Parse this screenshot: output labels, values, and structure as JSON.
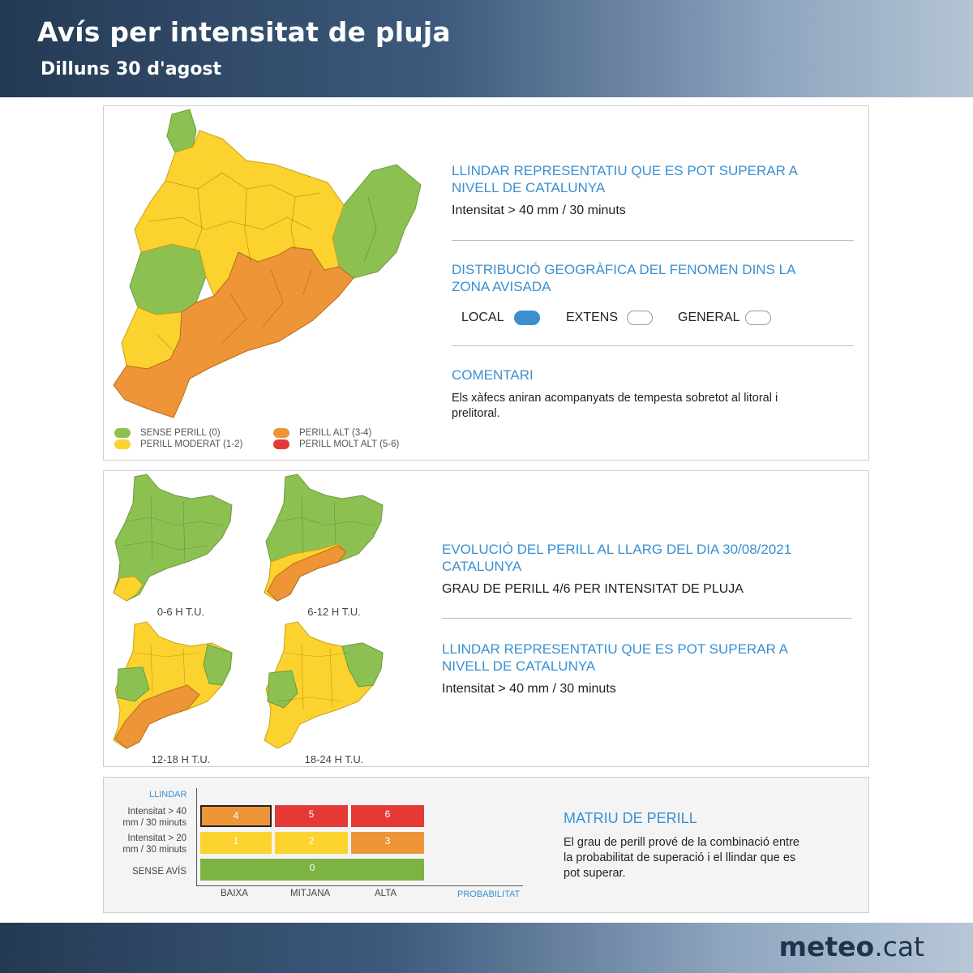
{
  "header": {
    "title": "Avís per intensitat de pluja",
    "subtitle": "Dilluns 30 d'agost"
  },
  "colors": {
    "green": "#8cc152",
    "yellow": "#fcd22e",
    "orange": "#ee9637",
    "red": "#e53935",
    "blue": "#3a8fd0",
    "band_start": "#243a53",
    "band_end": "#b4c4d5"
  },
  "panel1": {
    "threshold_title_1": "LLINDAR REPRESENTATIU QUE ES POT SUPERAR A",
    "threshold_title_2": "NIVELL DE CATALUNYA",
    "threshold_text": "Intensitat > 40 mm / 30 minuts",
    "distribution_title_1": "DISTRIBUCIÓ GEOGRÀFICA DEL FENOMEN DINS LA",
    "distribution_title_2": "ZONA AVISADA",
    "distribution": [
      {
        "label": "LOCAL",
        "selected": true
      },
      {
        "label": "EXTENS",
        "selected": false
      },
      {
        "label": "GENERAL",
        "selected": false
      }
    ],
    "comment_title": "COMENTARI",
    "comment_line_1": "Els xàfecs aniran acompanyats de tempesta sobretot al litoral i",
    "comment_line_2": "prelitoral.",
    "legend": [
      {
        "label": "SENSE PERILL (0)",
        "color": "#8cc152"
      },
      {
        "label": "PERILL MODERAT (1-2)",
        "color": "#fcd22e"
      },
      {
        "label": "PERILL ALT (3-4)",
        "color": "#ee9637"
      },
      {
        "label": "PERILL MOLT ALT (5-6)",
        "color": "#e53935"
      }
    ]
  },
  "panel2": {
    "maps": [
      {
        "label": "0-6 H T.U."
      },
      {
        "label": "6-12 H T.U."
      },
      {
        "label": "12-18 H T.U."
      },
      {
        "label": "18-24 H T.U."
      }
    ],
    "evolution_title_1": "EVOLUCIÓ DEL PERILL AL LLARG DEL DIA 30/08/2021",
    "evolution_title_2": "CATALUNYA",
    "evolution_text": "GRAU DE PERILL 4/6 PER INTENSITAT DE PLUJA",
    "threshold_title_1": "LLINDAR REPRESENTATIU QUE ES POT SUPERAR A",
    "threshold_title_2": "NIVELL DE CATALUNYA",
    "threshold_text": "Intensitat > 40 mm / 30 minuts"
  },
  "panel3": {
    "y_title": "LLINDAR",
    "rows": [
      {
        "label_1": "Intensitat > 40",
        "label_2": "mm / 30 minuts",
        "cells": [
          "4",
          "5",
          "6"
        ]
      },
      {
        "label_1": "Intensitat > 20",
        "label_2": "mm / 30 minuts",
        "cells": [
          "1",
          "2",
          "3"
        ]
      },
      {
        "label_1": "SENSE AVÍS",
        "label_2": "",
        "cells": [
          "0"
        ]
      }
    ],
    "x_labels": [
      "BAIXA",
      "MITJANA",
      "ALTA"
    ],
    "x_title": "PROBABILITAT",
    "title": "MATRIU DE PERILL",
    "desc_1": "El grau de perill prové de la combinació entre",
    "desc_2": "la probabilitat de superació i el llindar que es",
    "desc_3": "pot superar."
  },
  "brand": {
    "bold": "meteo",
    "light": ".cat"
  }
}
